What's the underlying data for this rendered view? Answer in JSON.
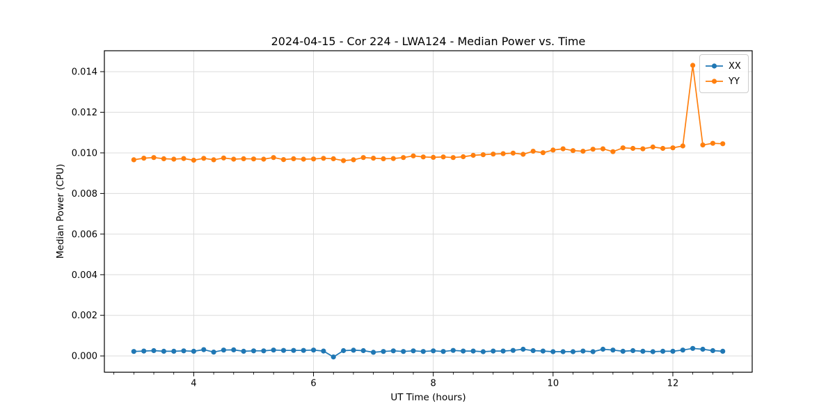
{
  "figure": {
    "title": "2024-04-15 - Cor 224 - LWA124 - Median Power vs. Time"
  },
  "chart_data": {
    "type": "line",
    "title": "2024-04-15 - Cor 224 - LWA124 - Median Power vs. Time",
    "xlabel": "UT Time (hours)",
    "ylabel": "Median Power (CPU)",
    "xlim": [
      2.508,
      13.325
    ],
    "ylim": [
      -0.0008,
      0.01503
    ],
    "grid": true,
    "legend_position": "upper right",
    "frame_color": "#000000",
    "grid_color": "#dcdcdc",
    "x_major_ticks": [
      4,
      6,
      8,
      10,
      12
    ],
    "x_major_tick_labels": [
      "4",
      "6",
      "8",
      "10",
      "12"
    ],
    "x_minor_tick_interval": 0.33333,
    "y_major_ticks": [
      0.0,
      0.002,
      0.004,
      0.006,
      0.008,
      0.01,
      0.012,
      0.014
    ],
    "y_major_tick_labels": [
      "0.000",
      "0.002",
      "0.004",
      "0.006",
      "0.008",
      "0.010",
      "0.012",
      "0.014"
    ],
    "x": [
      3.0,
      3.167,
      3.333,
      3.5,
      3.667,
      3.833,
      4.0,
      4.167,
      4.333,
      4.5,
      4.667,
      4.833,
      5.0,
      5.167,
      5.333,
      5.5,
      5.667,
      5.833,
      6.0,
      6.167,
      6.333,
      6.5,
      6.667,
      6.833,
      7.0,
      7.167,
      7.333,
      7.5,
      7.667,
      7.833,
      8.0,
      8.167,
      8.333,
      8.5,
      8.667,
      8.833,
      9.0,
      9.167,
      9.333,
      9.5,
      9.667,
      9.833,
      10.0,
      10.167,
      10.333,
      10.5,
      10.667,
      10.833,
      11.0,
      11.167,
      11.333,
      11.5,
      11.667,
      11.833,
      12.0,
      12.167,
      12.333,
      12.5,
      12.667,
      12.833
    ],
    "series": [
      {
        "name": "XX",
        "color": "#1f77b4",
        "values": [
          0.00022,
          0.00024,
          0.00026,
          0.00023,
          0.00023,
          0.00025,
          0.00023,
          0.00031,
          0.00019,
          0.00029,
          0.0003,
          0.00023,
          0.00025,
          0.00025,
          0.00029,
          0.00027,
          0.00027,
          0.00027,
          0.00029,
          0.00024,
          -5e-05,
          0.00026,
          0.00028,
          0.00026,
          0.00018,
          0.00022,
          0.00025,
          0.00022,
          0.00025,
          0.00022,
          0.00025,
          0.00022,
          0.00027,
          0.00024,
          0.00024,
          0.00021,
          0.00024,
          0.00024,
          0.00027,
          0.00033,
          0.00026,
          0.00024,
          0.00021,
          0.00021,
          0.00021,
          0.00024,
          0.00021,
          0.00033,
          0.00029,
          0.00023,
          0.00026,
          0.00023,
          0.00021,
          0.00023,
          0.00023,
          0.00029,
          0.00037,
          0.00033,
          0.00026,
          0.00023
        ]
      },
      {
        "name": "YY",
        "color": "#ff7f0e",
        "values": [
          0.00966,
          0.00974,
          0.00977,
          0.00971,
          0.00969,
          0.00972,
          0.00964,
          0.00973,
          0.00966,
          0.00975,
          0.00969,
          0.00971,
          0.0097,
          0.00969,
          0.00977,
          0.00967,
          0.00971,
          0.00969,
          0.0097,
          0.00973,
          0.00971,
          0.00962,
          0.00966,
          0.00977,
          0.00974,
          0.00971,
          0.00972,
          0.00977,
          0.00985,
          0.0098,
          0.00978,
          0.0098,
          0.00977,
          0.00981,
          0.00988,
          0.00991,
          0.00994,
          0.00996,
          0.00999,
          0.00993,
          0.01008,
          0.01001,
          0.01014,
          0.0102,
          0.01011,
          0.01008,
          0.01018,
          0.0102,
          0.01006,
          0.01025,
          0.01022,
          0.0102,
          0.01029,
          0.01022,
          0.01025,
          0.01034,
          0.01431,
          0.01039,
          0.01047,
          0.01045
        ]
      }
    ]
  }
}
